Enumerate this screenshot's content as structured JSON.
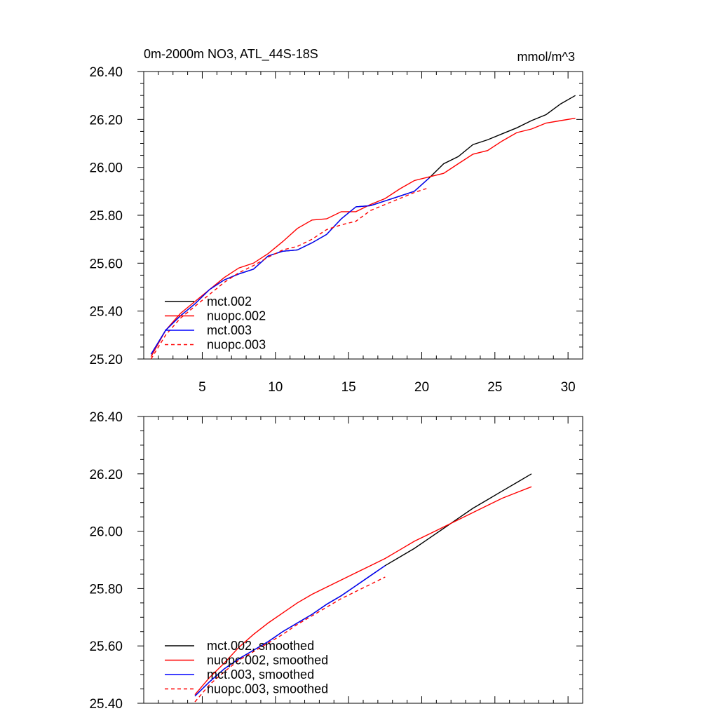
{
  "chart_data": [
    {
      "type": "line",
      "title": "0m-2000m NO3, ATL_44S-18S",
      "units": "mmol/m^3",
      "xlabel": "",
      "ylabel": "",
      "xlim": [
        1,
        31
      ],
      "ylim": [
        25.2,
        26.4
      ],
      "xticks": [
        5,
        10,
        15,
        20,
        25,
        30
      ],
      "xtick_labels": [
        "5",
        "10",
        "15",
        "20",
        "25",
        "30"
      ],
      "yticks": [
        25.2,
        25.4,
        25.6,
        25.8,
        26.0,
        26.2,
        26.4
      ],
      "ytick_labels": [
        "25.20",
        "25.40",
        "25.60",
        "25.80",
        "26.00",
        "26.20",
        "26.40"
      ],
      "grid": false,
      "legend_position": "bottom-left",
      "series": [
        {
          "name": "mct.002",
          "color": "#000000",
          "dash": "solid",
          "x": [
            1.5,
            2.5,
            3.5,
            4.5,
            5.5,
            6.5,
            7.5,
            8.5,
            9.5,
            10.5,
            11.5,
            12.5,
            13.5,
            14.5,
            15.5,
            16.5,
            17.5,
            18.5,
            19.5,
            20.5,
            21.5,
            22.5,
            23.5,
            24.5,
            25.5,
            26.5,
            27.5,
            28.5,
            29.5,
            30.5
          ],
          "values": [
            25.22,
            25.32,
            25.38,
            25.43,
            25.49,
            25.53,
            25.555,
            25.575,
            25.63,
            25.65,
            25.655,
            25.685,
            25.72,
            25.785,
            25.835,
            25.84,
            25.86,
            25.88,
            25.9,
            25.955,
            26.015,
            26.045,
            26.095,
            26.115,
            26.14,
            26.165,
            26.195,
            26.22,
            26.265,
            26.3
          ]
        },
        {
          "name": "nuopc.002",
          "color": "#ff0000",
          "dash": "solid",
          "x": [
            1.5,
            2.5,
            3.5,
            4.5,
            5.5,
            6.5,
            7.5,
            8.5,
            9.5,
            10.5,
            11.5,
            12.5,
            13.5,
            14.5,
            15.5,
            16.5,
            17.5,
            18.5,
            19.5,
            20.5,
            21.5,
            22.5,
            23.5,
            24.5,
            25.5,
            26.5,
            27.5,
            28.5,
            29.5,
            30.5
          ],
          "values": [
            25.21,
            25.32,
            25.39,
            25.44,
            25.49,
            25.54,
            25.58,
            25.6,
            25.64,
            25.69,
            25.745,
            25.78,
            25.785,
            25.815,
            25.815,
            25.845,
            25.87,
            25.91,
            25.945,
            25.96,
            25.975,
            26.015,
            26.055,
            26.07,
            26.11,
            26.145,
            26.16,
            26.185,
            26.195,
            26.205
          ]
        },
        {
          "name": "mct.003",
          "color": "#0000ff",
          "dash": "solid",
          "x": [
            1.5,
            2.5,
            3.5,
            4.5,
            5.5,
            6.5,
            7.5,
            8.5,
            9.5,
            10.5,
            11.5,
            12.5,
            13.5,
            14.5,
            15.5,
            16.5,
            17.5,
            18.5,
            19.5,
            20.5
          ],
          "values": [
            25.22,
            25.32,
            25.38,
            25.43,
            25.49,
            25.53,
            25.555,
            25.575,
            25.63,
            25.65,
            25.655,
            25.685,
            25.72,
            25.785,
            25.835,
            25.84,
            25.86,
            25.88,
            25.9,
            25.955
          ]
        },
        {
          "name": "nuopc.003",
          "color": "#ff0000",
          "dash": "dashed",
          "x": [
            1.5,
            2.5,
            3.5,
            4.5,
            5.5,
            6.5,
            7.5,
            8.5,
            9.5,
            10.5,
            11.5,
            12.5,
            13.5,
            14.5,
            15.5,
            16.5,
            17.5,
            18.5,
            19.5,
            20.5
          ],
          "values": [
            25.2,
            25.3,
            25.37,
            25.42,
            25.47,
            25.52,
            25.56,
            25.59,
            25.625,
            25.655,
            25.67,
            25.7,
            25.74,
            25.76,
            25.775,
            25.82,
            25.845,
            25.87,
            25.895,
            25.915
          ]
        }
      ]
    },
    {
      "type": "line",
      "title": "",
      "xlabel": "",
      "ylabel": "",
      "xlim": [
        1,
        31
      ],
      "ylim": [
        25.4,
        26.4
      ],
      "xticks": [
        5,
        10,
        15,
        20,
        25,
        30
      ],
      "yticks": [
        25.4,
        25.6,
        25.8,
        26.0,
        26.2,
        26.4
      ],
      "ytick_labels": [
        "25.40",
        "25.60",
        "25.80",
        "26.00",
        "26.20",
        "26.40"
      ],
      "grid": false,
      "legend_position": "bottom-left",
      "series": [
        {
          "name": "mct.002, smoothed",
          "color": "#000000",
          "dash": "solid",
          "x": [
            4.5,
            5.5,
            6.5,
            7.5,
            8.5,
            9.5,
            10.5,
            11.5,
            12.5,
            13.5,
            14.5,
            15.5,
            16.5,
            17.5,
            18.5,
            19.5,
            20.5,
            21.5,
            22.5,
            23.5,
            24.5,
            25.5,
            26.5,
            27.5
          ],
          "values": [
            25.425,
            25.475,
            25.52,
            25.555,
            25.585,
            25.615,
            25.65,
            25.68,
            25.71,
            25.745,
            25.775,
            25.81,
            25.845,
            25.88,
            25.91,
            25.94,
            25.975,
            26.01,
            26.045,
            26.08,
            26.11,
            26.14,
            26.17,
            26.2
          ]
        },
        {
          "name": "nuopc.002, smoothed",
          "color": "#ff0000",
          "dash": "solid",
          "x": [
            4.5,
            5.5,
            6.5,
            7.5,
            8.5,
            9.5,
            10.5,
            11.5,
            12.5,
            13.5,
            14.5,
            15.5,
            16.5,
            17.5,
            18.5,
            19.5,
            20.5,
            21.5,
            22.5,
            23.5,
            24.5,
            25.5,
            26.5,
            27.5
          ],
          "values": [
            25.43,
            25.49,
            25.54,
            25.595,
            25.64,
            25.68,
            25.715,
            25.75,
            25.78,
            25.805,
            25.83,
            25.855,
            25.88,
            25.905,
            25.935,
            25.965,
            25.99,
            26.015,
            26.04,
            26.065,
            26.09,
            26.115,
            26.135,
            26.155
          ]
        },
        {
          "name": "mct.003, smoothed",
          "color": "#0000ff",
          "dash": "solid",
          "x": [
            4.5,
            5.5,
            6.5,
            7.5,
            8.5,
            9.5,
            10.5,
            11.5,
            12.5,
            13.5,
            14.5,
            15.5,
            16.5,
            17.5
          ],
          "values": [
            25.425,
            25.475,
            25.52,
            25.555,
            25.585,
            25.615,
            25.65,
            25.68,
            25.71,
            25.745,
            25.775,
            25.81,
            25.845,
            25.88
          ]
        },
        {
          "name": "nuopc.003, smoothed",
          "color": "#ff0000",
          "dash": "dashed",
          "x": [
            4.5,
            5.5,
            6.5,
            7.5,
            8.5,
            9.5,
            10.5,
            11.5,
            12.5,
            13.5,
            14.5,
            15.5,
            16.5,
            17.5
          ],
          "values": [
            25.405,
            25.465,
            25.51,
            25.55,
            25.58,
            25.61,
            25.64,
            25.675,
            25.705,
            25.735,
            25.765,
            25.79,
            25.815,
            25.84
          ]
        }
      ]
    }
  ]
}
